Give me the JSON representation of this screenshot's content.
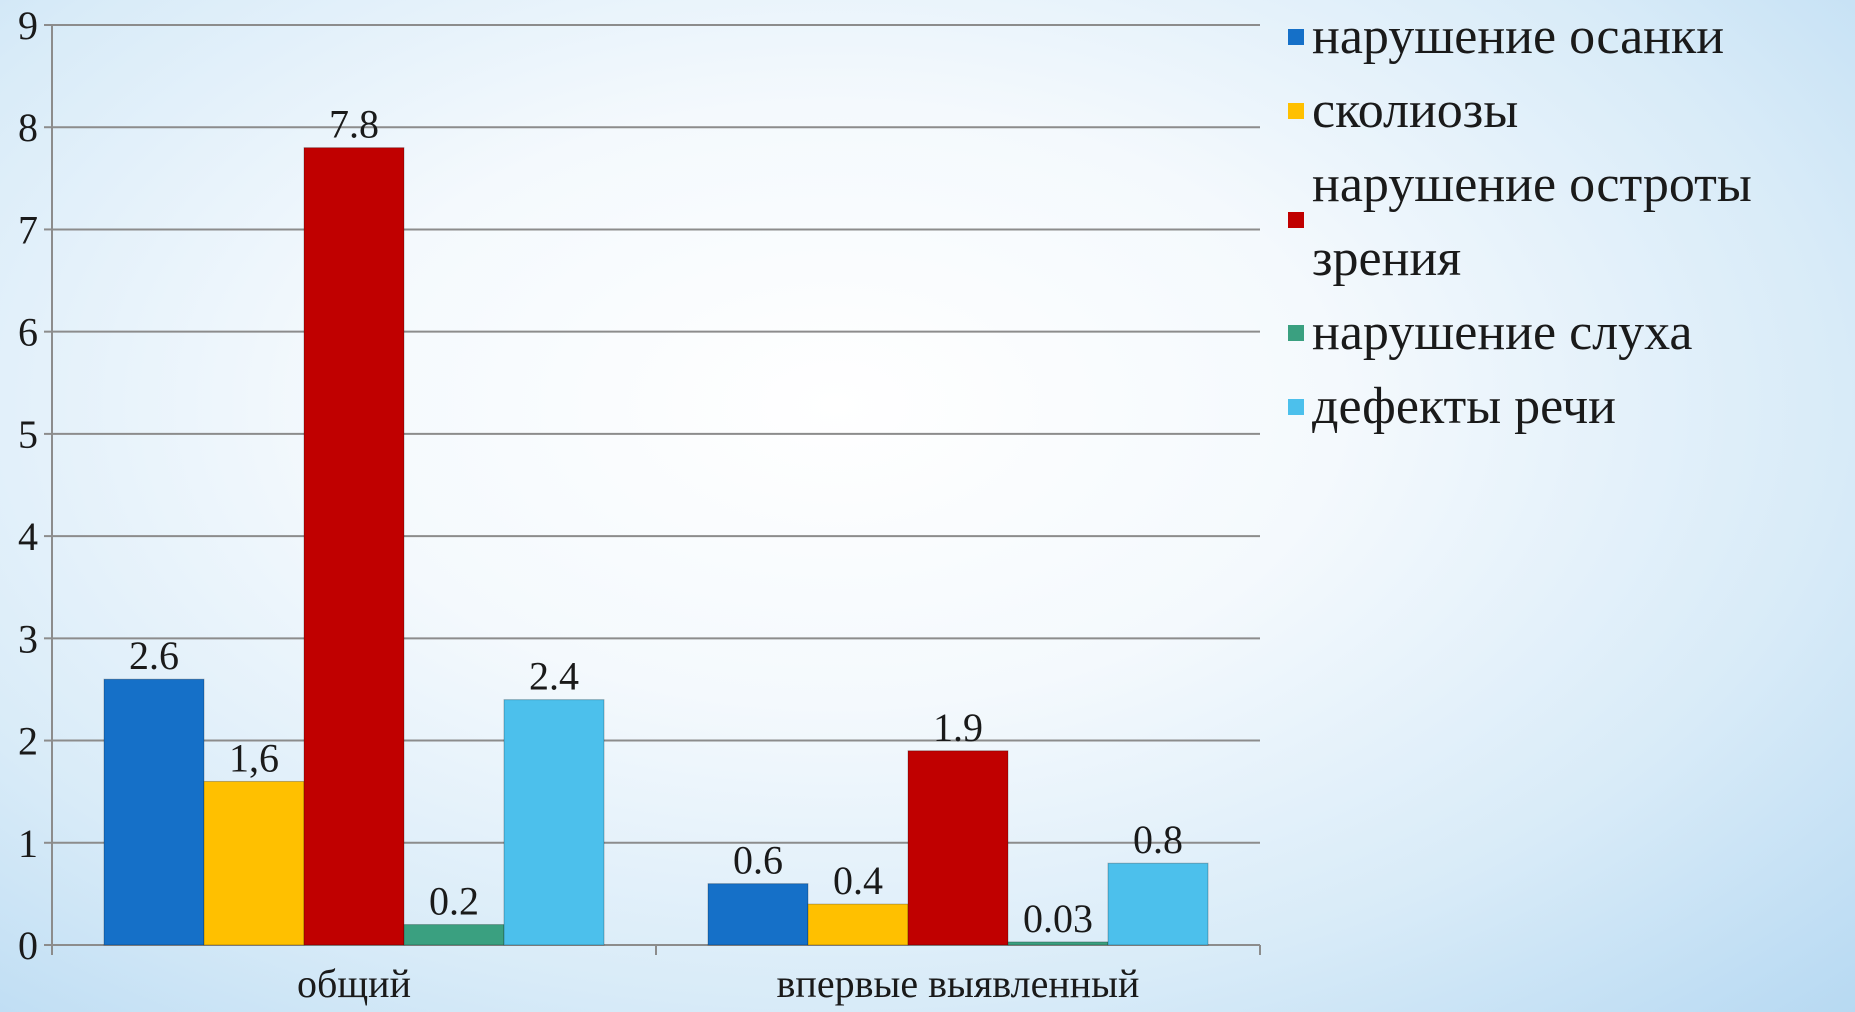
{
  "chart_data": {
    "type": "bar",
    "categories": [
      "общий",
      "впервые выявленный"
    ],
    "series": [
      {
        "name": "нарушение осанки",
        "values": [
          2.6,
          0.6
        ],
        "labels": [
          "2.6",
          "0.6"
        ],
        "color": "#1570c8"
      },
      {
        "name": "сколиозы",
        "values": [
          1.6,
          0.4
        ],
        "labels": [
          "1,6",
          "0.4"
        ],
        "color": "#ffc000"
      },
      {
        "name": "нарушение остроты зрения",
        "values": [
          7.8,
          1.9
        ],
        "labels": [
          "7.8",
          "1.9"
        ],
        "color": "#c00000"
      },
      {
        "name": "нарушение слуха",
        "values": [
          0.2,
          0.03
        ],
        "labels": [
          "0.2",
          "0.03"
        ],
        "color": "#3aa080"
      },
      {
        "name": "дефекты речи",
        "values": [
          2.4,
          0.8
        ],
        "labels": [
          "2.4",
          "0.8"
        ],
        "color": "#4cc0ec"
      }
    ],
    "yticks": [
      "0",
      "1",
      "2",
      "3",
      "4",
      "5",
      "6",
      "7",
      "8",
      "9"
    ],
    "ylim": [
      0,
      9
    ],
    "grid": true,
    "legend_position": "right",
    "title": "",
    "xlabel": "",
    "ylabel": ""
  }
}
